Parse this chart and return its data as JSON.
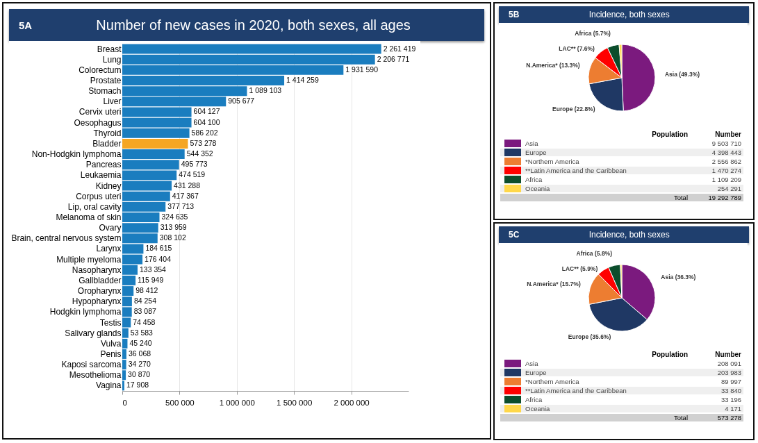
{
  "chart_data": [
    {
      "type": "bar",
      "orientation": "horizontal",
      "title": "Number of new cases in 2020, both sexes, all ages",
      "annotations": [
        "5A"
      ],
      "categories": [
        "Breast",
        "Lung",
        "Colorectum",
        "Prostate",
        "Stomach",
        "Liver",
        "Cervix uteri",
        "Oesophagus",
        "Thyroid",
        "Bladder",
        "Non-Hodgkin lymphoma",
        "Pancreas",
        "Leukaemia",
        "Kidney",
        "Corpus uteri",
        "Lip, oral cavity",
        "Melanoma of skin",
        "Ovary",
        "Brain, central nervous system",
        "Larynx",
        "Multiple myeloma",
        "Nasopharynx",
        "Gallbladder",
        "Oropharynx",
        "Hypopharynx",
        "Hodgkin lymphoma",
        "Testis",
        "Salivary glands",
        "Vulva",
        "Penis",
        "Kaposi sarcoma",
        "Mesothelioma",
        "Vagina"
      ],
      "values": [
        2261419,
        2206771,
        1931590,
        1414259,
        1089103,
        905677,
        604127,
        604100,
        586202,
        573278,
        544352,
        495773,
        474519,
        431288,
        417367,
        377713,
        324635,
        313959,
        308102,
        184615,
        176404,
        133354,
        115949,
        98412,
        84254,
        83087,
        74458,
        53583,
        45240,
        36068,
        34270,
        30870,
        17908
      ],
      "colors": [
        "#1a7dbf",
        "#1a7dbf",
        "#1a7dbf",
        "#1a7dbf",
        "#1a7dbf",
        "#1a7dbf",
        "#1a7dbf",
        "#1a7dbf",
        "#1a7dbf",
        "#f5a623",
        "#1a7dbf",
        "#1a7dbf",
        "#1a7dbf",
        "#1a7dbf",
        "#1a7dbf",
        "#1a7dbf",
        "#1a7dbf",
        "#1a7dbf",
        "#1a7dbf",
        "#1a7dbf",
        "#1a7dbf",
        "#1a7dbf",
        "#1a7dbf",
        "#1a7dbf",
        "#1a7dbf",
        "#1a7dbf",
        "#1a7dbf",
        "#1a7dbf",
        "#1a7dbf",
        "#1a7dbf",
        "#1a7dbf",
        "#1a7dbf",
        "#1a7dbf"
      ],
      "xlim": [
        0,
        2500000
      ],
      "xticks": [
        0,
        {
          "value": 500000,
          "label": "500 000"
        },
        {
          "value": 1000000,
          "label": "1 000 000"
        },
        {
          "value": 1500000,
          "label": "1 500 000"
        },
        {
          "value": 2000000,
          "label": "2 000 000"
        }
      ],
      "grid": "x",
      "data_labels": true
    },
    {
      "type": "pie",
      "title": "Incidence, both sexes",
      "annotations": [
        "5B",
        "Population",
        "Number",
        "Total",
        {
          "text": "Asia (49.3%)",
          "x": "Asia"
        },
        {
          "text": "Europe (22.8%)",
          "x": "Europe"
        },
        {
          "text": "N.America* (13.3%)",
          "x": "*Northern America"
        },
        {
          "text": "LAC** (7.6%)",
          "x": "**Latin America and the Caribbean"
        },
        {
          "text": "Africa (5.7%)",
          "x": "Africa"
        }
      ],
      "categories": [
        "Asia",
        "Europe",
        "*Northern America",
        "**Latin America and the Caribbean",
        "Africa",
        "Oceania"
      ],
      "values": [
        9503710,
        4398443,
        2556862,
        1470274,
        1109209,
        254291
      ],
      "colors": [
        "#7b1a7e",
        "#1f3864",
        "#ed7d31",
        "#ff0000",
        "#0b4d2c",
        "#ffd84a"
      ],
      "value_labels": [
        "9 503 710",
        "4 398 443",
        "2 556 862",
        "1 470 274",
        "1 109 209",
        "254 291"
      ],
      "totals": [
        "19 292 789"
      ],
      "legend": "bottom"
    },
    {
      "type": "pie",
      "title": "Incidence, both sexes",
      "annotations": [
        "5C",
        "Population",
        "Number",
        "Total",
        {
          "text": "Asia (36.3%)",
          "x": "Asia"
        },
        {
          "text": "Europe (35.6%)",
          "x": "Europe"
        },
        {
          "text": "N.America* (15.7%)",
          "x": "*Northern America"
        },
        {
          "text": "LAC** (5.9%)",
          "x": "**Latin America and the Caribbean"
        },
        {
          "text": "Africa (5.8%)",
          "x": "Africa"
        }
      ],
      "categories": [
        "Asia",
        "Europe",
        "*Northern America",
        "**Latin America and the Caribbean",
        "Africa",
        "Oceania"
      ],
      "values": [
        208091,
        203983,
        89997,
        33840,
        33196,
        4171
      ],
      "colors": [
        "#7b1a7e",
        "#1f3864",
        "#ed7d31",
        "#ff0000",
        "#0b4d2c",
        "#ffd84a"
      ],
      "value_labels": [
        "208 091",
        "203 983",
        "89 997",
        "33 840",
        "33 196",
        "4 171"
      ],
      "totals": [
        "573 278"
      ],
      "legend": "bottom"
    }
  ]
}
